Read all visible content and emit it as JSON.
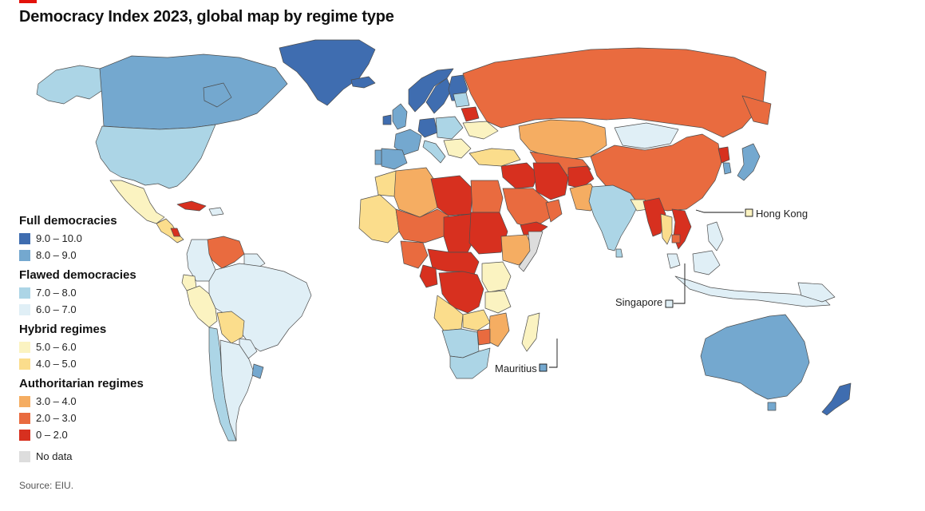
{
  "title": "Democracy Index 2023, global map by regime type",
  "source": "Source: EIU.",
  "legend": [
    {
      "heading": "Full democracies",
      "items": [
        {
          "label": "9.0 – 10.0",
          "color": "#3f6db0"
        },
        {
          "label": "8.0 – 9.0",
          "color": "#74a8cf"
        }
      ]
    },
    {
      "heading": "Flawed democracies",
      "items": [
        {
          "label": "7.0 – 8.0",
          "color": "#acd5e6"
        },
        {
          "label": "6.0 – 7.0",
          "color": "#e0eff6"
        }
      ]
    },
    {
      "heading": "Hybrid regimes",
      "items": [
        {
          "label": "5.0 – 6.0",
          "color": "#fbf3c1"
        },
        {
          "label": "4.0 – 5.0",
          "color": "#fbdd8c"
        }
      ]
    },
    {
      "heading": "Authoritarian regimes",
      "items": [
        {
          "label": "3.0 – 4.0",
          "color": "#f5ad62"
        },
        {
          "label": "2.0 – 3.0",
          "color": "#e96b3f"
        },
        {
          "label": "0 – 2.0",
          "color": "#d7301f"
        }
      ]
    }
  ],
  "no_data": {
    "label": "No data",
    "color": "#dddddd"
  },
  "callouts": {
    "hong_kong": "Hong Kong",
    "singapore": "Singapore",
    "mauritius": "Mauritius"
  },
  "colors": {
    "ocean": "#ffffff",
    "border": "#4d4d4d",
    "accent": "#e3120b"
  }
}
